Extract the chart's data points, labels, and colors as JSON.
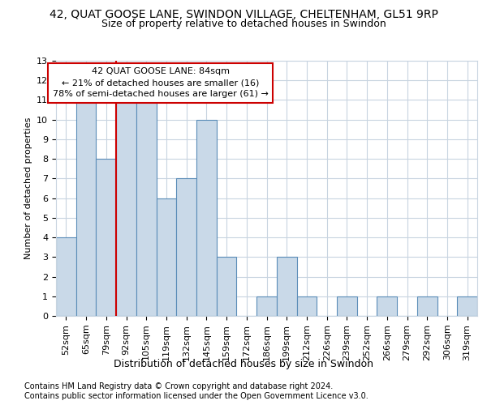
{
  "title1": "42, QUAT GOOSE LANE, SWINDON VILLAGE, CHELTENHAM, GL51 9RP",
  "title2": "Size of property relative to detached houses in Swindon",
  "xlabel": "Distribution of detached houses by size in Swindon",
  "ylabel": "Number of detached properties",
  "footnote1": "Contains HM Land Registry data © Crown copyright and database right 2024.",
  "footnote2": "Contains public sector information licensed under the Open Government Licence v3.0.",
  "bar_labels": [
    "52sqm",
    "65sqm",
    "79sqm",
    "92sqm",
    "105sqm",
    "119sqm",
    "132sqm",
    "145sqm",
    "159sqm",
    "172sqm",
    "186sqm",
    "199sqm",
    "212sqm",
    "226sqm",
    "239sqm",
    "252sqm",
    "266sqm",
    "279sqm",
    "292sqm",
    "306sqm",
    "319sqm"
  ],
  "bar_values": [
    4,
    11,
    8,
    11,
    11,
    6,
    7,
    10,
    3,
    0,
    1,
    3,
    1,
    0,
    1,
    0,
    1,
    0,
    1,
    0,
    1
  ],
  "bar_color": "#c9d9e8",
  "bar_edge_color": "#5b8db8",
  "highlight_line_color": "#cc0000",
  "highlight_bar_idx": 2,
  "annotation_line1": "42 QUAT GOOSE LANE: 84sqm",
  "annotation_line2": "← 21% of detached houses are smaller (16)",
  "annotation_line3": "78% of semi-detached houses are larger (61) →",
  "ylim": [
    0,
    13
  ],
  "yticks": [
    0,
    1,
    2,
    3,
    4,
    5,
    6,
    7,
    8,
    9,
    10,
    11,
    12,
    13
  ],
  "background_color": "#ffffff",
  "grid_color": "#c8d4e0",
  "title1_fontsize": 10,
  "title2_fontsize": 9,
  "xlabel_fontsize": 9,
  "ylabel_fontsize": 8,
  "tick_fontsize": 8,
  "annotation_fontsize": 8,
  "footnote_fontsize": 7
}
